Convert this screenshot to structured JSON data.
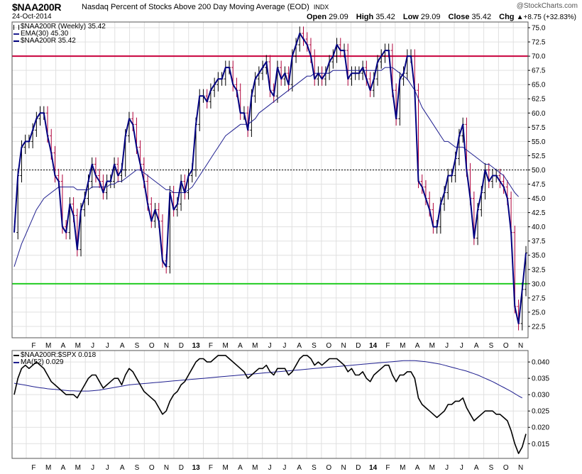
{
  "header": {
    "symbol": "$NAA200R",
    "description": "Nasdaq Percent of Stocks Above 200 Day Moving Average (EOD)",
    "exchange": "INDX",
    "date": "24-Oct-2014",
    "brand": "@StockCharts.com",
    "open_label": "Open",
    "open": "29.09",
    "high_label": "High",
    "high": "35.42",
    "low_label": "Low",
    "low": "29.09",
    "close_label": "Close",
    "close": "35.42",
    "chg_label": "Chg",
    "chg": "+8.75 (+32.83%)",
    "chg_arrow": "▲"
  },
  "legend_top": [
    {
      "text": "$NAA200R (Weekly) 35.42",
      "color": "#000000",
      "marker": "bars"
    },
    {
      "text": "EMA(30) 45.30",
      "color": "#1f1f8f",
      "marker": "line"
    },
    {
      "text": "$NAA200R 35.42",
      "color": "#000080",
      "marker": "line"
    }
  ],
  "legend_bottom": [
    {
      "text": "$NAA200R:$SPX 0.018",
      "color": "#000000",
      "marker": "line"
    },
    {
      "text": "MA(52) 0.029",
      "color": "#1f1f8f",
      "marker": "line"
    }
  ],
  "colors": {
    "price": "#000080",
    "ema": "#1f1f8f",
    "ratio": "#000000",
    "up_bar": "#000000",
    "down_bar": "#b0003a",
    "line70": "#c8003c",
    "line30": "#22cc22",
    "line50": "#000000",
    "grid": "#e0e0e0"
  },
  "chart_data": [
    {
      "type": "line",
      "title": "$NAA200R Nasdaq Percent of Stocks Above 200 Day Moving Average (EOD)",
      "x_ticks": [
        "F",
        "M",
        "A",
        "M",
        "J",
        "J",
        "A",
        "S",
        "O",
        "N",
        "D",
        "13",
        "F",
        "M",
        "A",
        "M",
        "J",
        "J",
        "A",
        "S",
        "O",
        "N",
        "D",
        "14",
        "F",
        "M",
        "A",
        "M",
        "J",
        "J",
        "A",
        "S",
        "O",
        "N"
      ],
      "y_ticks": [
        "22.5",
        "25.0",
        "27.5",
        "30.0",
        "32.5",
        "35.0",
        "37.5",
        "40.0",
        "42.5",
        "45.0",
        "47.5",
        "50.0",
        "52.5",
        "55.0",
        "57.5",
        "60.0",
        "62.5",
        "65.0",
        "67.5",
        "70.0",
        "72.5",
        "75.0"
      ],
      "ylim": [
        20.5,
        76.0
      ],
      "reference_lines": [
        70,
        50,
        30
      ],
      "series": [
        {
          "name": "$NAA200R 35.42",
          "values": [
            39,
            49,
            54,
            55,
            55,
            57,
            59,
            60,
            60,
            56,
            53,
            49,
            48,
            40,
            39,
            44,
            42,
            36,
            43,
            45,
            48,
            51,
            49,
            48,
            46,
            48,
            48,
            51,
            49,
            50,
            56,
            59,
            58,
            54,
            51,
            48,
            44,
            41,
            43,
            41,
            34,
            33,
            46,
            43,
            44,
            48,
            46,
            49,
            50,
            58,
            63,
            63,
            62,
            64,
            65,
            66,
            66,
            68,
            68,
            65,
            64,
            60,
            60,
            57,
            63,
            66,
            67,
            68,
            69,
            64,
            63,
            68,
            66,
            67,
            65,
            70,
            72,
            74,
            73,
            72,
            70,
            66,
            67,
            66,
            67,
            69,
            70,
            72,
            71,
            71,
            66,
            67,
            67,
            67,
            68,
            66,
            64,
            66,
            69,
            70,
            71,
            71,
            64,
            59,
            66,
            67,
            70,
            70,
            64,
            48,
            47,
            45,
            43,
            40,
            40,
            44,
            46,
            49,
            49,
            52,
            56,
            58,
            50,
            45,
            38,
            43,
            46,
            50,
            48,
            49,
            49,
            48,
            47,
            45,
            39,
            26,
            23,
            29,
            35.42
          ]
        },
        {
          "name": "EMA(30) 45.30",
          "values": [
            33,
            35,
            37,
            38.5,
            40,
            41.5,
            43,
            44,
            45,
            45.5,
            46,
            46.5,
            47,
            47,
            47,
            47,
            47,
            46.5,
            46.5,
            46.5,
            46.5,
            47,
            47,
            47,
            47,
            47,
            47.5,
            47.5,
            48,
            48,
            48.5,
            49,
            49.5,
            50,
            50,
            49.5,
            49,
            48.5,
            48,
            47.5,
            47,
            46.5,
            46.5,
            46,
            46,
            46,
            46,
            46.5,
            47,
            48,
            49,
            50,
            51,
            52,
            53,
            54,
            55,
            56,
            56.5,
            57,
            57.5,
            58,
            58,
            58,
            58.5,
            59,
            60,
            60.5,
            61,
            61.5,
            62,
            62.5,
            63,
            63.5,
            64,
            64.5,
            65,
            65.5,
            66,
            66.5,
            66.5,
            67,
            67,
            67,
            67,
            67,
            67.5,
            67.5,
            67.5,
            67.5,
            67.5,
            67.5,
            67.5,
            67.5,
            67.5,
            67.5,
            67.5,
            67.5,
            67.5,
            67.5,
            68,
            68,
            68,
            67.5,
            67,
            66.5,
            66,
            65,
            64,
            62.5,
            61,
            60,
            59,
            58,
            57,
            56,
            55,
            55,
            54.5,
            54,
            54,
            54,
            53.5,
            53,
            52.5,
            52,
            51.5,
            51,
            51,
            50.5,
            50,
            49.5,
            49,
            48,
            47,
            46,
            45.3
          ]
        },
        {
          "name": "$NAA200R (Weekly) 35.42",
          "values": []
        }
      ]
    },
    {
      "type": "line",
      "title": "$NAA200R:$SPX",
      "y_ticks": [
        "0.015",
        "0.020",
        "0.025",
        "0.030",
        "0.035",
        "0.040"
      ],
      "ylim": [
        0.0105,
        0.0435
      ],
      "series": [
        {
          "name": "$NAA200R:$SPX 0.018",
          "values": [
            0.03,
            0.035,
            0.038,
            0.039,
            0.038,
            0.039,
            0.04,
            0.039,
            0.038,
            0.036,
            0.034,
            0.033,
            0.032,
            0.031,
            0.03,
            0.03,
            0.03,
            0.029,
            0.031,
            0.033,
            0.035,
            0.036,
            0.036,
            0.034,
            0.032,
            0.033,
            0.034,
            0.035,
            0.035,
            0.033,
            0.036,
            0.038,
            0.037,
            0.035,
            0.033,
            0.031,
            0.03,
            0.029,
            0.028,
            0.026,
            0.024,
            0.025,
            0.028,
            0.03,
            0.031,
            0.033,
            0.034,
            0.036,
            0.038,
            0.04,
            0.041,
            0.041,
            0.04,
            0.04,
            0.041,
            0.042,
            0.042,
            0.042,
            0.041,
            0.04,
            0.039,
            0.038,
            0.037,
            0.035,
            0.036,
            0.037,
            0.038,
            0.038,
            0.039,
            0.037,
            0.036,
            0.038,
            0.038,
            0.038,
            0.036,
            0.037,
            0.039,
            0.041,
            0.042,
            0.042,
            0.041,
            0.039,
            0.04,
            0.039,
            0.04,
            0.041,
            0.041,
            0.041,
            0.04,
            0.039,
            0.037,
            0.038,
            0.036,
            0.036,
            0.037,
            0.035,
            0.034,
            0.036,
            0.037,
            0.038,
            0.039,
            0.039,
            0.036,
            0.034,
            0.036,
            0.036,
            0.037,
            0.037,
            0.035,
            0.029,
            0.027,
            0.026,
            0.025,
            0.024,
            0.023,
            0.024,
            0.025,
            0.027,
            0.027,
            0.028,
            0.028,
            0.029,
            0.026,
            0.024,
            0.022,
            0.023,
            0.024,
            0.025,
            0.025,
            0.025,
            0.024,
            0.024,
            0.023,
            0.022,
            0.019,
            0.015,
            0.012,
            0.014,
            0.018
          ]
        },
        {
          "name": "MA(52) 0.029",
          "values": [
            0.0335,
            0.0333,
            0.0331,
            0.0329,
            0.0327,
            0.0325,
            0.0323,
            0.0321,
            0.032,
            0.0318,
            0.0317,
            0.0316,
            0.0315,
            0.0314,
            0.0313,
            0.0312,
            0.0312,
            0.0311,
            0.0311,
            0.0311,
            0.0311,
            0.0312,
            0.0313,
            0.0314,
            0.0316,
            0.0318,
            0.032,
            0.0322,
            0.0324,
            0.0326,
            0.0328,
            0.033,
            0.0331,
            0.0332,
            0.0333,
            0.0334,
            0.0335,
            0.0336,
            0.0337,
            0.0338,
            0.0339,
            0.034,
            0.0341,
            0.0342,
            0.0343,
            0.0344,
            0.0345,
            0.0346,
            0.0347,
            0.0348,
            0.0349,
            0.035,
            0.0351,
            0.0352,
            0.0353,
            0.0354,
            0.0355,
            0.0356,
            0.0357,
            0.0358,
            0.0359,
            0.036,
            0.0361,
            0.0362,
            0.0363,
            0.0364,
            0.0365,
            0.0366,
            0.0367,
            0.0368,
            0.0369,
            0.037,
            0.0371,
            0.0372,
            0.0373,
            0.0374,
            0.0375,
            0.0376,
            0.0377,
            0.0378,
            0.0379,
            0.038,
            0.0381,
            0.0382,
            0.0383,
            0.0384,
            0.0385,
            0.0386,
            0.0387,
            0.0388,
            0.0389,
            0.039,
            0.0391,
            0.0392,
            0.0393,
            0.0394,
            0.0395,
            0.0396,
            0.0397,
            0.0398,
            0.0399,
            0.04,
            0.0401,
            0.0402,
            0.0403,
            0.0404,
            0.0404,
            0.0404,
            0.0404,
            0.0403,
            0.0402,
            0.0401,
            0.0399,
            0.0397,
            0.0395,
            0.0393,
            0.039,
            0.0387,
            0.0384,
            0.0381,
            0.0378,
            0.0375,
            0.0372,
            0.0368,
            0.0364,
            0.036,
            0.0355,
            0.035,
            0.0345,
            0.034,
            0.0334,
            0.0328,
            0.0322,
            0.0316,
            0.031,
            0.0303,
            0.0296,
            0.029
          ]
        }
      ]
    }
  ]
}
